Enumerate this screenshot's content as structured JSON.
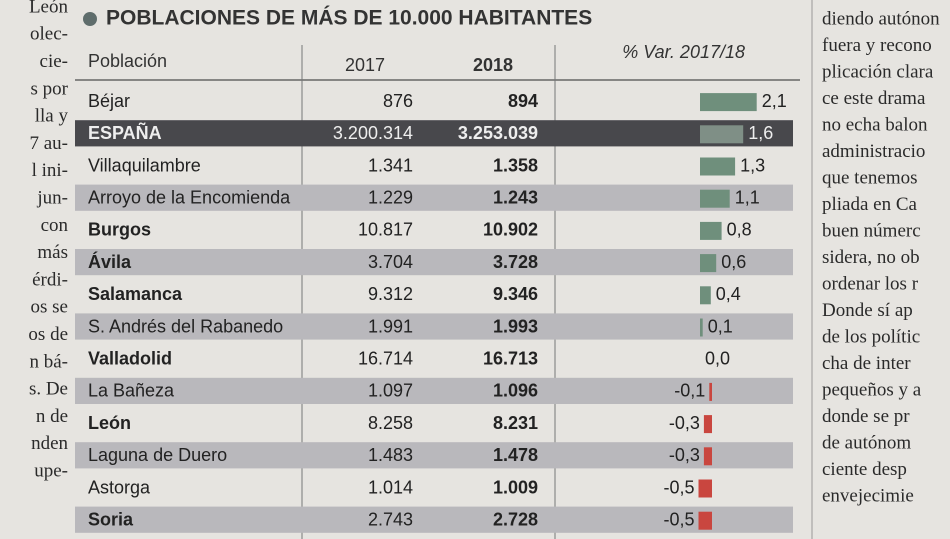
{
  "left_column": [
    "León",
    "olec-",
    "cie-",
    "s por",
    "lla y",
    "7 au-",
    "l ini-",
    "jun-",
    "con",
    "más",
    "érdi-",
    "os se",
    "os de",
    "n bá-",
    "s. De",
    "n de",
    "nden",
    "upe-"
  ],
  "right_column": [
    "diendo autónon",
    "fuera y recono",
    "plicación clara",
    "ce este drama",
    "no echa balon",
    "administracio",
    "que tenemos",
    "pliada en Ca",
    "buen númerc",
    "sidera, no ob",
    "ordenar los r",
    "Donde sí ap",
    "de los polític",
    "cha de inter",
    "pequeños y a",
    "donde se pr",
    "de autónom",
    "ciente desp",
    "envejecimie"
  ],
  "table": {
    "title": "POBLACIONES DE MÁS DE 10.000 HABITANTES",
    "header": [
      "Población",
      "2017",
      "2018",
      "% Var. 2017/18"
    ],
    "rows": [
      {
        "name": "Béjar",
        "y2017": "876",
        "y2018": "894",
        "var": {
          "value": 2.1,
          "label": "2,1"
        },
        "bold": false
      },
      {
        "name": "ESPAÑA",
        "y2017": "3.200.314",
        "y2018": "3.253.039",
        "var": {
          "value": 1.6,
          "label": "1,6"
        },
        "bold": true
      },
      {
        "name": "Villaquilambre",
        "y2017": "1.341",
        "y2018": "1.358",
        "var": {
          "value": 1.3,
          "label": "1,3"
        },
        "bold": false
      },
      {
        "name": "Arroyo de la Encomienda",
        "y2017": "1.229",
        "y2018": "1.243",
        "var": {
          "value": 1.1,
          "label": "1,1"
        },
        "bold": false
      },
      {
        "name": "Burgos",
        "y2017": "10.817",
        "y2018": "10.902",
        "var": {
          "value": 0.8,
          "label": "0,8"
        },
        "bold": true
      },
      {
        "name": "Ávila",
        "y2017": "3.704",
        "y2018": "3.728",
        "var": {
          "value": 0.6,
          "label": "0,6"
        },
        "bold": true
      },
      {
        "name": "Salamanca",
        "y2017": "9.312",
        "y2018": "9.346",
        "var": {
          "value": 0.4,
          "label": "0,4"
        },
        "bold": true
      },
      {
        "name": "S. Andrés del Rabanedo",
        "y2017": "1.991",
        "y2018": "1.993",
        "var": {
          "value": 0.1,
          "label": "0,1"
        },
        "bold": false
      },
      {
        "name": "Valladolid",
        "y2017": "16.714",
        "y2018": "16.713",
        "var": {
          "value": 0.0,
          "label": "0,0"
        },
        "bold": true
      },
      {
        "name": "La Bañeza",
        "y2017": "1.097",
        "y2018": "1.096",
        "var": {
          "value": -0.1,
          "label": "-0,1"
        },
        "bold": false
      },
      {
        "name": "León",
        "y2017": "8.258",
        "y2018": "8.231",
        "var": {
          "value": -0.3,
          "label": "-0,3"
        },
        "bold": true
      },
      {
        "name": "Laguna de Duero",
        "y2017": "1.483",
        "y2018": "1.478",
        "var": {
          "value": -0.3,
          "label": "-0,3"
        },
        "bold": false
      },
      {
        "name": "Astorga",
        "y2017": "1.014",
        "y2018": "1.009",
        "var": {
          "value": -0.5,
          "label": "-0,5"
        },
        "bold": false
      },
      {
        "name": "Soria",
        "y2017": "2.743",
        "y2018": "2.728",
        "var": {
          "value": -0.5,
          "label": "-0,5"
        },
        "bold": true
      }
    ]
  }
}
